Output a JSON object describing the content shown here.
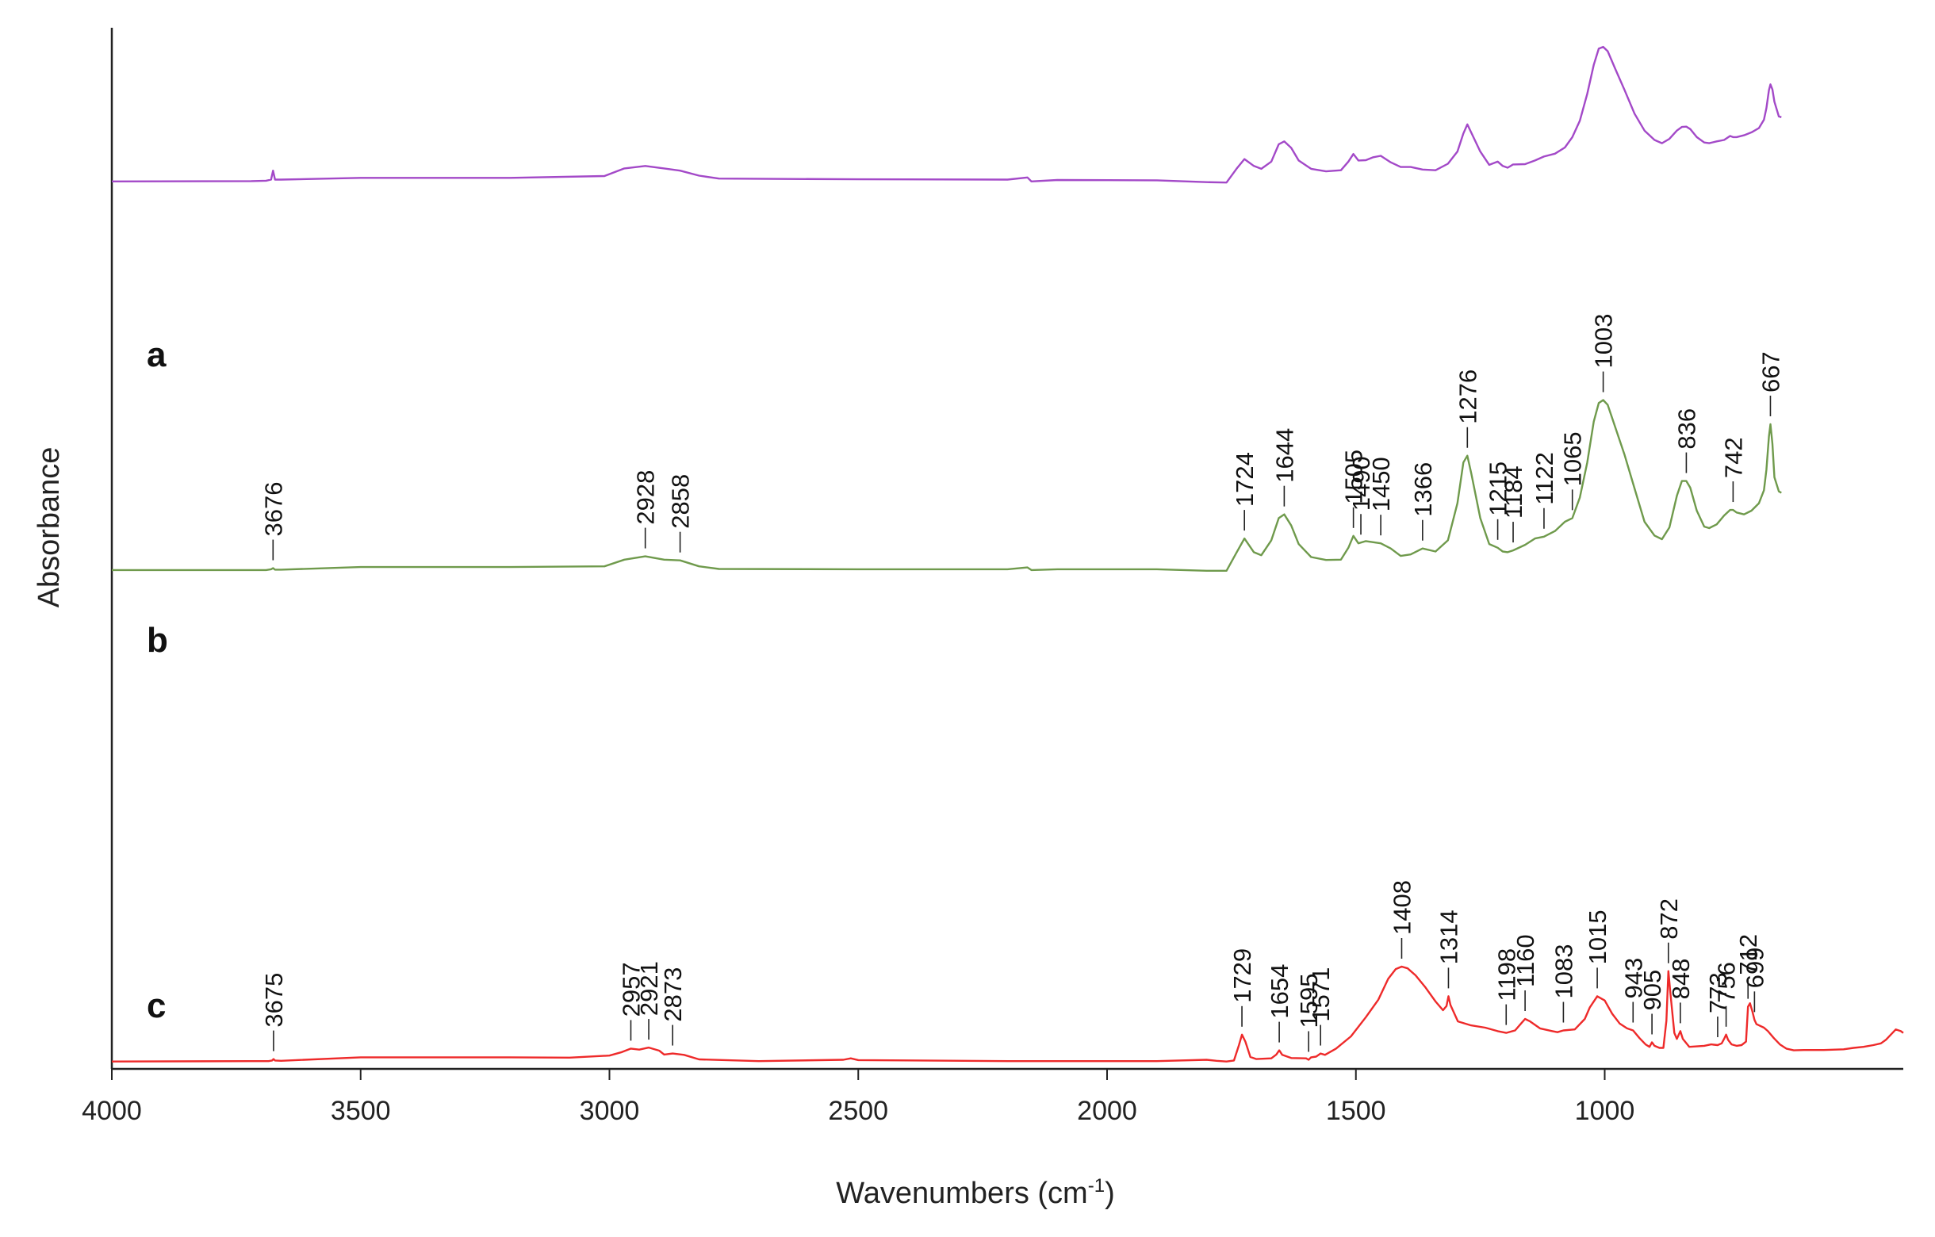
{
  "chart_data": {
    "type": "line",
    "xlabel": "Wavenumbers (cm-1)",
    "ylabel": "Absorbance",
    "xlim": [
      4000,
      400
    ],
    "x_reversed": true,
    "x_ticks": [
      4000,
      3500,
      3000,
      2500,
      2000,
      1500,
      1000
    ],
    "grid": false,
    "colors": {
      "a": "#a349c8",
      "b": "#6f9a4c",
      "c": "#ee2a2a",
      "axis": "#222222"
    },
    "y_range": [
      0,
      1
    ],
    "series": [
      {
        "name": "a",
        "x": [
          4000,
          3720,
          3690,
          3680,
          3676,
          3672,
          3660,
          3500,
          3200,
          3010,
          2970,
          2928,
          2890,
          2858,
          2820,
          2780,
          2500,
          2200,
          2160,
          2152,
          2100,
          1900,
          1800,
          1760,
          1740,
          1724,
          1705,
          1690,
          1670,
          1655,
          1644,
          1630,
          1615,
          1590,
          1560,
          1530,
          1515,
          1505,
          1495,
          1480,
          1465,
          1450,
          1430,
          1410,
          1390,
          1366,
          1340,
          1315,
          1296,
          1284,
          1276,
          1268,
          1250,
          1232,
          1215,
          1205,
          1195,
          1184,
          1160,
          1140,
          1122,
          1100,
          1080,
          1065,
          1050,
          1035,
          1022,
          1012,
          1003,
          994,
          980,
          960,
          940,
          920,
          900,
          885,
          870,
          855,
          845,
          836,
          828,
          815,
          800,
          790,
          775,
          760,
          748,
          742,
          735,
          720,
          705,
          690,
          680,
          675,
          670,
          667,
          663,
          659,
          650,
          645
        ],
        "y": [
          0.607,
          0.608,
          0.609,
          0.612,
          0.637,
          0.612,
          0.612,
          0.617,
          0.617,
          0.622,
          0.643,
          0.65,
          0.643,
          0.637,
          0.623,
          0.615,
          0.613,
          0.612,
          0.618,
          0.607,
          0.611,
          0.61,
          0.605,
          0.604,
          0.642,
          0.669,
          0.65,
          0.642,
          0.662,
          0.71,
          0.718,
          0.7,
          0.665,
          0.642,
          0.635,
          0.638,
          0.662,
          0.683,
          0.665,
          0.666,
          0.674,
          0.678,
          0.66,
          0.647,
          0.647,
          0.64,
          0.638,
          0.656,
          0.69,
          0.74,
          0.765,
          0.742,
          0.69,
          0.653,
          0.662,
          0.65,
          0.645,
          0.654,
          0.655,
          0.665,
          0.676,
          0.684,
          0.701,
          0.73,
          0.775,
          0.85,
          0.93,
          0.975,
          0.98,
          0.968,
          0.923,
          0.86,
          0.795,
          0.748,
          0.722,
          0.713,
          0.725,
          0.748,
          0.758,
          0.759,
          0.752,
          0.73,
          0.715,
          0.713,
          0.718,
          0.722,
          0.733,
          0.73,
          0.73,
          0.735,
          0.743,
          0.755,
          0.778,
          0.81,
          0.86,
          0.876,
          0.862,
          0.828,
          0.787,
          0.785
        ]
      },
      {
        "name": "b",
        "x": [
          4000,
          3720,
          3690,
          3680,
          3676,
          3672,
          3660,
          3500,
          3200,
          3010,
          2970,
          2928,
          2890,
          2858,
          2820,
          2780,
          2500,
          2200,
          2160,
          2152,
          2100,
          1900,
          1800,
          1760,
          1740,
          1724,
          1705,
          1690,
          1670,
          1655,
          1644,
          1630,
          1615,
          1590,
          1560,
          1530,
          1515,
          1505,
          1495,
          1480,
          1465,
          1450,
          1430,
          1410,
          1390,
          1366,
          1340,
          1315,
          1296,
          1284,
          1276,
          1268,
          1250,
          1232,
          1215,
          1205,
          1195,
          1184,
          1160,
          1140,
          1122,
          1100,
          1080,
          1065,
          1050,
          1035,
          1022,
          1012,
          1003,
          994,
          980,
          960,
          940,
          920,
          900,
          885,
          870,
          855,
          845,
          836,
          828,
          815,
          800,
          790,
          775,
          760,
          748,
          742,
          735,
          720,
          705,
          690,
          680,
          675,
          670,
          667,
          663,
          659,
          650,
          645
        ],
        "y": [
          0.34,
          0.34,
          0.34,
          0.342,
          0.345,
          0.341,
          0.341,
          0.348,
          0.348,
          0.35,
          0.368,
          0.377,
          0.368,
          0.366,
          0.35,
          0.343,
          0.342,
          0.342,
          0.347,
          0.34,
          0.342,
          0.342,
          0.338,
          0.338,
          0.387,
          0.425,
          0.388,
          0.38,
          0.42,
          0.48,
          0.49,
          0.46,
          0.41,
          0.375,
          0.367,
          0.368,
          0.4,
          0.432,
          0.412,
          0.418,
          0.415,
          0.412,
          0.398,
          0.378,
          0.382,
          0.398,
          0.39,
          0.42,
          0.52,
          0.63,
          0.648,
          0.6,
          0.48,
          0.41,
          0.4,
          0.39,
          0.388,
          0.393,
          0.408,
          0.425,
          0.43,
          0.445,
          0.47,
          0.48,
          0.535,
          0.63,
          0.74,
          0.79,
          0.798,
          0.785,
          0.73,
          0.65,
          0.56,
          0.47,
          0.433,
          0.423,
          0.455,
          0.54,
          0.58,
          0.58,
          0.562,
          0.5,
          0.457,
          0.453,
          0.463,
          0.487,
          0.502,
          0.502,
          0.495,
          0.49,
          0.5,
          0.52,
          0.555,
          0.61,
          0.7,
          0.733,
          0.68,
          0.59,
          0.552,
          0.548
        ]
      },
      {
        "name": "c",
        "x": [
          4000,
          3720,
          3685,
          3678,
          3675,
          3672,
          3660,
          3500,
          3200,
          3080,
          3000,
          2975,
          2957,
          2940,
          2921,
          2900,
          2890,
          2873,
          2850,
          2820,
          2700,
          2530,
          2515,
          2500,
          2200,
          1900,
          1800,
          1780,
          1760,
          1745,
          1735,
          1729,
          1722,
          1712,
          1700,
          1670,
          1660,
          1654,
          1648,
          1630,
          1600,
          1595,
          1590,
          1580,
          1571,
          1562,
          1540,
          1510,
          1480,
          1455,
          1435,
          1420,
          1408,
          1396,
          1380,
          1360,
          1340,
          1325,
          1318,
          1314,
          1310,
          1295,
          1270,
          1240,
          1215,
          1198,
          1180,
          1168,
          1160,
          1150,
          1130,
          1105,
          1095,
          1083,
          1060,
          1040,
          1030,
          1015,
          1000,
          985,
          970,
          955,
          943,
          930,
          918,
          910,
          905,
          900,
          890,
          882,
          876,
          872,
          868,
          860,
          855,
          848,
          843,
          830,
          800,
          786,
          773,
          765,
          760,
          756,
          752,
          745,
          735,
          725,
          716,
          712,
          708,
          703,
          699,
          695,
          680,
          672,
          660,
          648,
          635,
          620,
          600,
          560,
          520,
          500,
          480,
          460,
          445,
          435,
          425,
          415,
          405,
          400
        ],
        "y": [
          0.003,
          0.004,
          0.004,
          0.006,
          0.01,
          0.006,
          0.005,
          0.015,
          0.015,
          0.014,
          0.02,
          0.03,
          0.04,
          0.037,
          0.043,
          0.034,
          0.023,
          0.026,
          0.022,
          0.009,
          0.004,
          0.008,
          0.012,
          0.007,
          0.004,
          0.004,
          0.008,
          0.005,
          0.003,
          0.006,
          0.05,
          0.08,
          0.06,
          0.016,
          0.01,
          0.012,
          0.023,
          0.035,
          0.022,
          0.013,
          0.012,
          0.008,
          0.015,
          0.017,
          0.026,
          0.022,
          0.04,
          0.075,
          0.13,
          0.18,
          0.24,
          0.268,
          0.275,
          0.27,
          0.25,
          0.215,
          0.175,
          0.15,
          0.162,
          0.19,
          0.165,
          0.118,
          0.107,
          0.1,
          0.09,
          0.085,
          0.092,
          0.112,
          0.125,
          0.118,
          0.098,
          0.09,
          0.087,
          0.092,
          0.095,
          0.125,
          0.158,
          0.19,
          0.178,
          0.14,
          0.112,
          0.098,
          0.092,
          0.07,
          0.052,
          0.045,
          0.058,
          0.048,
          0.042,
          0.042,
          0.12,
          0.262,
          0.2,
          0.085,
          0.068,
          0.09,
          0.068,
          0.045,
          0.048,
          0.052,
          0.05,
          0.055,
          0.068,
          0.08,
          0.065,
          0.052,
          0.048,
          0.05,
          0.06,
          0.16,
          0.17,
          0.145,
          0.122,
          0.11,
          0.1,
          0.09,
          0.07,
          0.052,
          0.04,
          0.035,
          0.036,
          0.036,
          0.038,
          0.042,
          0.045,
          0.05,
          0.055,
          0.065,
          0.08,
          0.095,
          0.09,
          0.085
        ]
      }
    ],
    "series_labels": [
      {
        "series": "a",
        "text": "a"
      },
      {
        "series": "b",
        "text": "b"
      },
      {
        "series": "c",
        "text": "c"
      }
    ],
    "annotations": {
      "b": [
        {
          "text": "3676",
          "x": 3676
        },
        {
          "text": "2928",
          "x": 2928
        },
        {
          "text": "2858",
          "x": 2858
        },
        {
          "text": "1724",
          "x": 1724
        },
        {
          "text": "1644",
          "x": 1644
        },
        {
          "text": "1505",
          "x": 1505
        },
        {
          "text": "1490",
          "x": 1490
        },
        {
          "text": "1450",
          "x": 1450
        },
        {
          "text": "1366",
          "x": 1366
        },
        {
          "text": "1276",
          "x": 1276
        },
        {
          "text": "1215",
          "x": 1215
        },
        {
          "text": "1184",
          "x": 1184
        },
        {
          "text": "1122",
          "x": 1122
        },
        {
          "text": "1065",
          "x": 1065
        },
        {
          "text": "1003",
          "x": 1003
        },
        {
          "text": "836",
          "x": 836
        },
        {
          "text": "742",
          "x": 742
        },
        {
          "text": "667",
          "x": 667
        }
      ],
      "c": [
        {
          "text": "3675",
          "x": 3675
        },
        {
          "text": "2957",
          "x": 2957
        },
        {
          "text": "2921",
          "x": 2921
        },
        {
          "text": "2873",
          "x": 2873
        },
        {
          "text": "1729",
          "x": 1729
        },
        {
          "text": "1654",
          "x": 1654
        },
        {
          "text": "1595",
          "x": 1595
        },
        {
          "text": "1571",
          "x": 1571
        },
        {
          "text": "1408",
          "x": 1408
        },
        {
          "text": "1314",
          "x": 1314
        },
        {
          "text": "1198",
          "x": 1198
        },
        {
          "text": "1160",
          "x": 1160
        },
        {
          "text": "1083",
          "x": 1083
        },
        {
          "text": "1015",
          "x": 1015
        },
        {
          "text": "943",
          "x": 943
        },
        {
          "text": "905",
          "x": 905
        },
        {
          "text": "872",
          "x": 872
        },
        {
          "text": "848",
          "x": 848
        },
        {
          "text": "773",
          "x": 773
        },
        {
          "text": "756",
          "x": 756
        },
        {
          "text": "712",
          "x": 712
        },
        {
          "text": "699",
          "x": 699
        }
      ]
    }
  }
}
